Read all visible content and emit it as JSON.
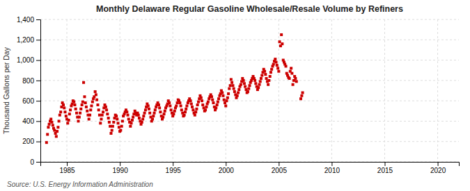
{
  "chart_data": {
    "type": "scatter",
    "title": "Monthly Delaware Regular Gasoline Wholesale/Resale Volume by Refiners",
    "ylabel": "Thousand Gallons per Day",
    "annotations": [
      "Source: U.S. Energy Information Administration"
    ],
    "color": "#cc0000",
    "marker": "square",
    "grid": true,
    "xlim": [
      1982.5,
      2022
    ],
    "ylim": [
      0,
      1400
    ],
    "xticks": [
      1985,
      1990,
      1995,
      2000,
      2005,
      2010,
      2015,
      2020
    ],
    "yticks": [
      0,
      200,
      400,
      600,
      800,
      {
        "value": 1000,
        "label": "1,000"
      },
      {
        "value": 1200,
        "label": "1,200"
      },
      {
        "value": 1400,
        "label": "1,400"
      }
    ],
    "x": [
      1983.08,
      1983.17,
      1983.25,
      1983.33,
      1983.42,
      1983.5,
      1983.58,
      1983.67,
      1983.75,
      1983.83,
      1983.92,
      1984.0,
      1984.08,
      1984.17,
      1984.25,
      1984.33,
      1984.42,
      1984.5,
      1984.58,
      1984.67,
      1984.75,
      1984.83,
      1984.92,
      1985.0,
      1985.08,
      1985.17,
      1985.25,
      1985.33,
      1985.42,
      1985.5,
      1985.58,
      1985.67,
      1985.75,
      1985.83,
      1985.92,
      1986.0,
      1986.08,
      1986.17,
      1986.25,
      1986.33,
      1986.42,
      1986.5,
      1986.58,
      1986.67,
      1986.75,
      1986.83,
      1986.92,
      1987.0,
      1987.08,
      1987.17,
      1987.25,
      1987.33,
      1987.42,
      1987.5,
      1987.58,
      1987.67,
      1987.75,
      1987.83,
      1987.92,
      1988.0,
      1988.08,
      1988.17,
      1988.25,
      1988.33,
      1988.42,
      1988.5,
      1988.58,
      1988.67,
      1988.75,
      1988.83,
      1988.92,
      1989.0,
      1989.08,
      1989.17,
      1989.25,
      1989.33,
      1989.42,
      1989.5,
      1989.58,
      1989.67,
      1989.75,
      1989.83,
      1989.92,
      1990.0,
      1990.08,
      1990.17,
      1990.25,
      1990.33,
      1990.42,
      1990.5,
      1990.58,
      1990.67,
      1990.75,
      1990.83,
      1990.92,
      1991.0,
      1991.08,
      1991.17,
      1991.25,
      1991.33,
      1991.42,
      1991.5,
      1991.58,
      1991.67,
      1991.75,
      1991.83,
      1991.92,
      1992.0,
      1992.08,
      1992.17,
      1992.25,
      1992.33,
      1992.42,
      1992.5,
      1992.58,
      1992.67,
      1992.75,
      1992.83,
      1992.92,
      1993.0,
      1993.08,
      1993.17,
      1993.25,
      1993.33,
      1993.42,
      1993.5,
      1993.58,
      1993.67,
      1993.75,
      1993.83,
      1993.92,
      1994.0,
      1994.08,
      1994.17,
      1994.25,
      1994.33,
      1994.42,
      1994.5,
      1994.58,
      1994.67,
      1994.75,
      1994.83,
      1994.92,
      1995.0,
      1995.08,
      1995.17,
      1995.25,
      1995.33,
      1995.42,
      1995.5,
      1995.58,
      1995.67,
      1995.75,
      1995.83,
      1995.92,
      1996.0,
      1996.08,
      1996.17,
      1996.25,
      1996.33,
      1996.42,
      1996.5,
      1996.58,
      1996.67,
      1996.75,
      1996.83,
      1996.92,
      1997.0,
      1997.08,
      1997.17,
      1997.25,
      1997.33,
      1997.42,
      1997.5,
      1997.58,
      1997.67,
      1997.75,
      1997.83,
      1997.92,
      1998.0,
      1998.08,
      1998.17,
      1998.25,
      1998.33,
      1998.42,
      1998.5,
      1998.58,
      1998.67,
      1998.75,
      1998.83,
      1998.92,
      1999.0,
      1999.08,
      1999.17,
      1999.25,
      1999.33,
      1999.42,
      1999.5,
      1999.58,
      1999.67,
      1999.75,
      1999.83,
      1999.92,
      2000.0,
      2000.08,
      2000.17,
      2000.25,
      2000.33,
      2000.42,
      2000.5,
      2000.58,
      2000.67,
      2000.75,
      2000.83,
      2000.92,
      2001.0,
      2001.08,
      2001.17,
      2001.25,
      2001.33,
      2001.42,
      2001.5,
      2001.58,
      2001.67,
      2001.75,
      2001.83,
      2001.92,
      2002.0,
      2002.08,
      2002.17,
      2002.25,
      2002.33,
      2002.42,
      2002.5,
      2002.58,
      2002.67,
      2002.75,
      2002.83,
      2002.92,
      2003.0,
      2003.08,
      2003.17,
      2003.25,
      2003.33,
      2003.42,
      2003.5,
      2003.58,
      2003.67,
      2003.75,
      2003.83,
      2003.92,
      2004.0,
      2004.08,
      2004.17,
      2004.25,
      2004.33,
      2004.42,
      2004.5,
      2004.58,
      2004.67,
      2004.75,
      2004.83,
      2004.92,
      2005.0,
      2005.08,
      2005.17,
      2005.25,
      2005.33,
      2005.42,
      2005.5,
      2005.58,
      2005.67,
      2005.75,
      2005.83,
      2005.92,
      2006.0,
      2006.08,
      2006.17,
      2006.25,
      2006.33,
      2006.42,
      2006.5,
      2006.58,
      2006.67,
      2007.08,
      2007.17,
      2007.25
    ],
    "values": [
      190,
      270,
      340,
      370,
      400,
      420,
      390,
      360,
      330,
      310,
      280,
      250,
      300,
      340,
      400,
      460,
      490,
      540,
      580,
      560,
      530,
      490,
      450,
      420,
      380,
      410,
      470,
      510,
      550,
      570,
      600,
      590,
      560,
      520,
      480,
      440,
      400,
      440,
      480,
      520,
      560,
      590,
      780,
      640,
      580,
      540,
      500,
      460,
      420,
      460,
      510,
      550,
      590,
      620,
      640,
      690,
      660,
      610,
      560,
      510,
      460,
      380,
      420,
      460,
      490,
      530,
      560,
      540,
      510,
      470,
      430,
      390,
      350,
      280,
      310,
      350,
      390,
      430,
      460,
      450,
      420,
      380,
      340,
      300,
      310,
      350,
      400,
      450,
      470,
      490,
      510,
      490,
      460,
      420,
      390,
      350,
      380,
      410,
      440,
      470,
      500,
      480,
      460,
      480,
      460,
      430,
      400,
      370,
      390,
      420,
      450,
      480,
      510,
      540,
      570,
      550,
      520,
      480,
      440,
      400,
      420,
      450,
      480,
      510,
      540,
      560,
      580,
      560,
      530,
      490,
      450,
      420,
      440,
      470,
      500,
      530,
      550,
      570,
      600,
      580,
      550,
      510,
      480,
      450,
      470,
      500,
      530,
      550,
      580,
      610,
      600,
      580,
      550,
      510,
      480,
      450,
      460,
      490,
      520,
      550,
      580,
      600,
      620,
      600,
      570,
      540,
      510,
      480,
      460,
      490,
      520,
      560,
      590,
      620,
      650,
      630,
      600,
      560,
      530,
      500,
      510,
      540,
      570,
      590,
      620,
      640,
      660,
      640,
      610,
      580,
      540,
      510,
      530,
      560,
      590,
      620,
      650,
      670,
      700,
      680,
      650,
      610,
      580,
      550,
      600,
      630,
      670,
      720,
      750,
      810,
      780,
      750,
      720,
      690,
      660,
      630,
      650,
      680,
      710,
      740,
      760,
      790,
      820,
      800,
      770,
      740,
      710,
      680,
      690,
      720,
      750,
      780,
      800,
      820,
      840,
      820,
      800,
      770,
      740,
      710,
      730,
      760,
      790,
      820,
      850,
      880,
      910,
      890,
      860,
      820,
      790,
      760,
      800,
      840,
      880,
      910,
      940,
      960,
      990,
      1010,
      980,
      950,
      920,
      890,
      1180,
      1140,
      1250,
      1160,
      1000,
      980,
      960,
      940,
      870,
      850,
      830,
      820,
      890,
      920,
      870,
      760,
      800,
      840,
      820,
      790,
      620,
      650,
      680
    ]
  }
}
